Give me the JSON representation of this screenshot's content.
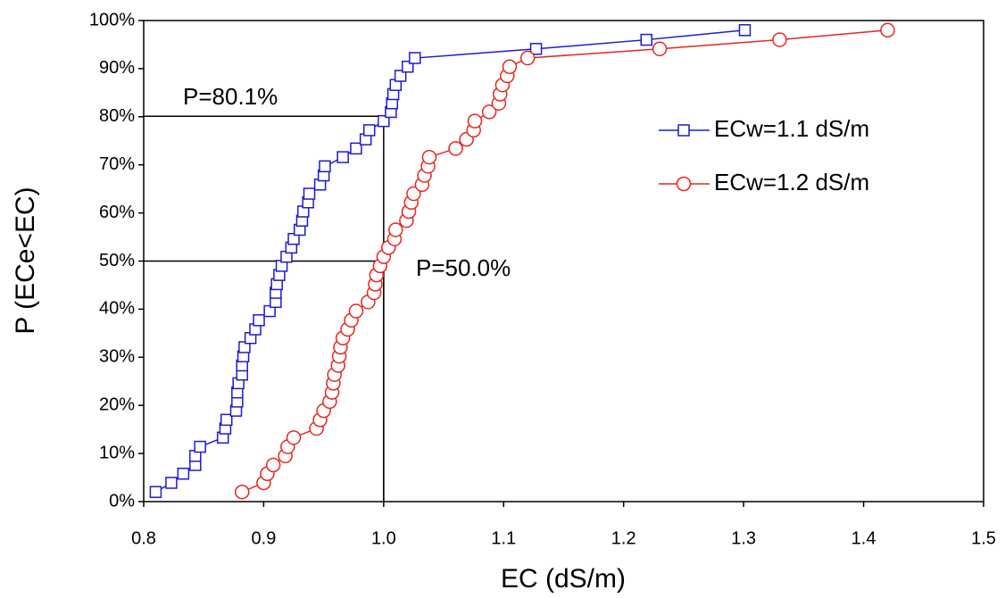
{
  "chart_data": {
    "type": "line",
    "xlabel": "EC (dS/m)",
    "ylabel": "P (ECe<EC)",
    "xlim": [
      0.8,
      1.5
    ],
    "xticks": [
      0.8,
      0.9,
      {
        "value": 1,
        "label": "1.0"
      },
      1.1,
      1.2,
      1.3,
      1.4,
      1.5
    ],
    "ylim": [
      0,
      100
    ],
    "yticks": [
      {
        "value": 0,
        "label": "0%"
      },
      {
        "value": 10,
        "label": "10%"
      },
      {
        "value": 20,
        "label": "20%"
      },
      {
        "value": 30,
        "label": "30%"
      },
      {
        "value": 40,
        "label": "40%"
      },
      {
        "value": 50,
        "label": "50%"
      },
      {
        "value": 60,
        "label": "60%"
      },
      {
        "value": 70,
        "label": "70%"
      },
      {
        "value": 80,
        "label": "80%"
      },
      {
        "value": 90,
        "label": "90%"
      },
      {
        "value": 100,
        "label": "100%"
      }
    ],
    "legend": "right",
    "series": [
      {
        "name": "ECw=1.1 dS/m",
        "color": "#1c1ccf",
        "marker": "square",
        "x": [
          0.81,
          0.823,
          0.833,
          0.843,
          0.843,
          0.847,
          0.866,
          0.868,
          0.869,
          0.877,
          0.878,
          0.878,
          0.879,
          0.882,
          0.882,
          0.883,
          0.884,
          0.889,
          0.893,
          0.896,
          0.905,
          0.91,
          0.91,
          0.911,
          0.913,
          0.915,
          0.919,
          0.923,
          0.925,
          0.93,
          0.932,
          0.933,
          0.937,
          0.938,
          0.947,
          0.95,
          0.951,
          0.966,
          0.977,
          0.985,
          0.988,
          1.0,
          1.006,
          1.007,
          1.008,
          1.01,
          1.014,
          1.02,
          1.026,
          1.127,
          1.219,
          1.301
        ],
        "values": [
          2.0,
          3.9,
          5.8,
          7.6,
          9.5,
          11.4,
          13.3,
          15.2,
          17.0,
          18.9,
          20.8,
          22.7,
          24.6,
          26.4,
          28.3,
          30.2,
          32.1,
          34.0,
          35.8,
          37.7,
          39.6,
          41.5,
          43.4,
          45.2,
          47.1,
          49.0,
          50.9,
          52.8,
          54.6,
          56.5,
          58.4,
          60.3,
          62.2,
          64.0,
          65.9,
          67.8,
          69.7,
          71.6,
          73.4,
          75.3,
          77.2,
          79.1,
          81.0,
          82.8,
          84.7,
          86.6,
          88.5,
          90.4,
          92.2,
          94.1,
          96.0,
          98.0
        ]
      },
      {
        "name": "ECw=1.2 dS/m",
        "color": "#e6261f",
        "marker": "circle",
        "x": [
          0.882,
          0.9,
          0.903,
          0.908,
          0.918,
          0.92,
          0.925,
          0.944,
          0.947,
          0.95,
          0.955,
          0.957,
          0.958,
          0.959,
          0.962,
          0.963,
          0.964,
          0.966,
          0.97,
          0.973,
          0.977,
          0.987,
          0.992,
          0.993,
          0.994,
          0.997,
          1.0,
          1.004,
          1.009,
          1.01,
          1.019,
          1.021,
          1.023,
          1.025,
          1.032,
          1.034,
          1.037,
          1.038,
          1.06,
          1.069,
          1.075,
          1.076,
          1.088,
          1.096,
          1.097,
          1.099,
          1.103,
          1.105,
          1.12,
          1.23,
          1.33,
          1.42
        ],
        "values": [
          2.0,
          3.9,
          5.8,
          7.6,
          9.5,
          11.4,
          13.3,
          15.2,
          17.0,
          18.9,
          20.8,
          22.7,
          24.6,
          26.4,
          28.3,
          30.2,
          32.1,
          34.0,
          35.8,
          37.7,
          39.6,
          41.5,
          43.4,
          45.2,
          47.1,
          49.0,
          50.9,
          52.8,
          54.6,
          56.5,
          58.4,
          60.3,
          62.2,
          64.0,
          65.9,
          67.8,
          69.7,
          71.6,
          73.4,
          75.3,
          77.2,
          79.1,
          81.0,
          82.8,
          84.7,
          86.6,
          88.5,
          90.4,
          92.2,
          94.1,
          96.0,
          98.0
        ]
      }
    ],
    "annotations": [
      {
        "text": "P=80.1%",
        "x": 1.0,
        "y": 80.1
      },
      {
        "text": "P=50.0%",
        "x": 1.0,
        "y": 50.0
      }
    ]
  }
}
